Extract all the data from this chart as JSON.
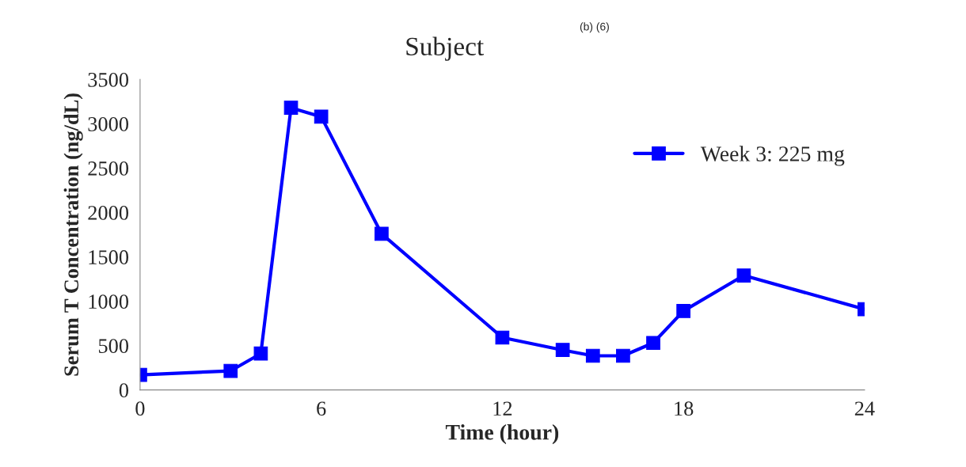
{
  "chart_data": {
    "type": "line",
    "title": "Subject",
    "annotations": [
      "(b) (6)"
    ],
    "xlabel": "Time (hour)",
    "ylabel": "Serum T Concentration (ng/dL)",
    "x": [
      0,
      3,
      4,
      5,
      6,
      8,
      12,
      14,
      15,
      16,
      17,
      18,
      20,
      24
    ],
    "series": [
      {
        "name": "Week 3: 225 mg",
        "color": "#0000ff",
        "values": [
          170,
          215,
          410,
          3180,
          3080,
          1760,
          590,
          450,
          385,
          385,
          530,
          890,
          1290,
          910
        ]
      }
    ],
    "xlim": [
      0,
      24
    ],
    "xticks": [
      0,
      6,
      12,
      18,
      24
    ],
    "ylim": [
      0,
      3500
    ],
    "yticks": [
      0,
      500,
      1000,
      1500,
      2000,
      2500,
      3000,
      3500
    ],
    "grid": false,
    "legend": "top right",
    "marker": "square",
    "line_style": "solid"
  }
}
